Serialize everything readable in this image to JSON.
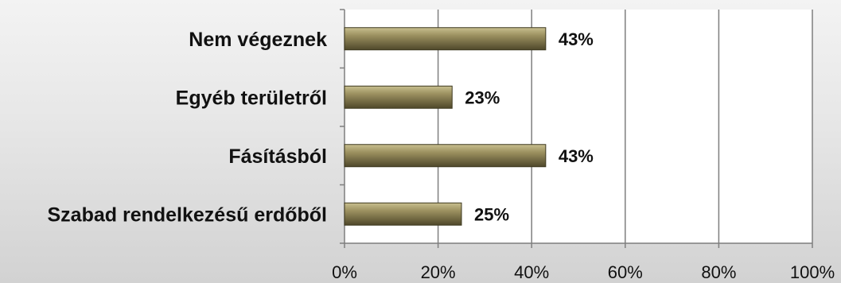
{
  "chart_data": {
    "type": "bar",
    "orientation": "horizontal",
    "title": "",
    "xlabel": "",
    "ylabel": "",
    "categories": [
      "Nem végeznek",
      "Egyéb területről",
      "Fásításból",
      "Szabad rendelkezésű erdőből"
    ],
    "values": [
      43,
      23,
      43,
      25
    ],
    "data_labels": [
      "43%",
      "23%",
      "43%",
      "25%"
    ],
    "xlim": [
      0,
      100
    ],
    "x_ticks": [
      "0%",
      "20%",
      "40%",
      "60%",
      "80%",
      "100%"
    ],
    "grid": true,
    "legend": "none",
    "colors": {
      "bar_fill": "#8a7f52",
      "bar_stroke": "#3d381f",
      "plot_bg": "#ffffff",
      "gridline": "#7f7f7f"
    }
  }
}
